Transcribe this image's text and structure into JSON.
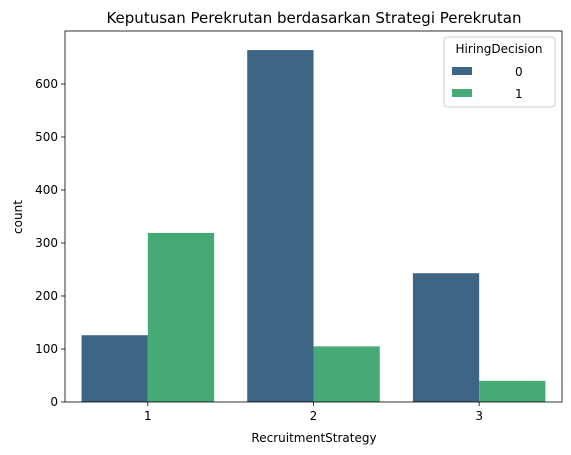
{
  "chart_data": {
    "type": "bar",
    "title": "Keputusan Perekrutan berdasarkan Strategi Perekrutan",
    "xlabel": "RecruitmentStrategy",
    "ylabel": "count",
    "categories": [
      "1",
      "2",
      "3"
    ],
    "series": [
      {
        "name": "0",
        "color": "#3e6584",
        "values": [
          126,
          664,
          243
        ]
      },
      {
        "name": "1",
        "color": "#45aa76",
        "values": [
          319,
          105,
          40
        ]
      }
    ],
    "ylim": [
      0,
      700
    ],
    "yticks": [
      0,
      100,
      200,
      300,
      400,
      500,
      600
    ],
    "legend": {
      "title": "HiringDecision",
      "placement": "top-right"
    },
    "grid": false
  }
}
